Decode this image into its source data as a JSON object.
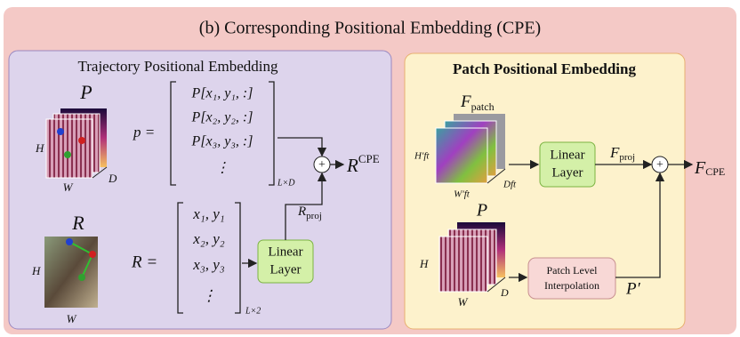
{
  "title": "(b) Corresponding Positional Embedding (CPE)",
  "trajectory": {
    "title": "Trajectory Positional Embedding",
    "P": {
      "label": "P",
      "h": "H",
      "w": "W",
      "d": "D"
    },
    "p_matrix": {
      "lhs": "p =",
      "rows": [
        "P[x₁, y₁, :]",
        "P[x₂, y₂, :]",
        "P[x₃, y₃, :]",
        "⋮"
      ],
      "dim": "L×D"
    },
    "R": {
      "label": "R",
      "h": "H",
      "w": "W"
    },
    "R_matrix": {
      "lhs": "R =",
      "rows": [
        "x₁, y₁",
        "x₂, y₂",
        "x₃, y₃",
        "⋮"
      ],
      "dim": "L×2"
    },
    "linear": [
      "Linear",
      "Layer"
    ],
    "R_proj": {
      "base": "R",
      "sub": "proj"
    },
    "plus": "+",
    "R_cpe": {
      "base": "R",
      "sup": "CPE"
    }
  },
  "patch": {
    "title": "Patch Positional Embedding",
    "F_patch": {
      "base": "F",
      "sub": "patch"
    },
    "h": "H′ft",
    "w": "W′ft",
    "d": "Dft",
    "linear": [
      "Linear",
      "Layer"
    ],
    "F_proj": {
      "base": "F",
      "sub": "proj"
    },
    "plus": "+",
    "F_cpe": {
      "base": "F",
      "sub": "CPE"
    },
    "P": {
      "label": "P",
      "h": "H",
      "w": "W",
      "d": "D"
    },
    "interp": [
      "Patch Level",
      "Interpolation"
    ],
    "P_prime": "P′"
  }
}
